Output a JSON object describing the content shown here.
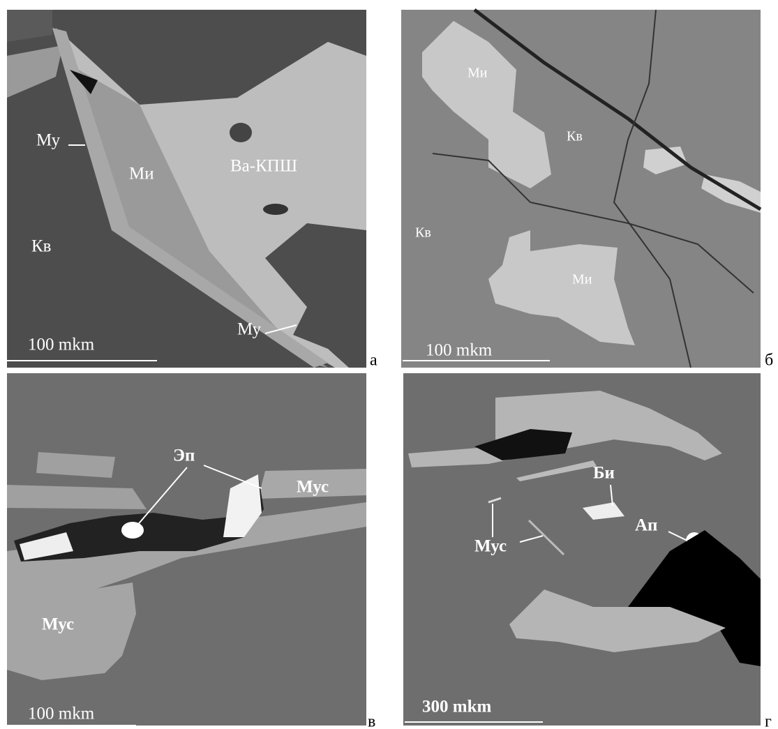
{
  "panels": [
    {
      "letter": "а",
      "scale_bar": "100 mkm",
      "labels": [
        "Му",
        "Ми",
        "Ba-КПШ",
        "Кв",
        "Му"
      ]
    },
    {
      "letter": "б",
      "scale_bar": "100 mkm",
      "labels": [
        "Ми",
        "Кв",
        "Кв",
        "Ми"
      ]
    },
    {
      "letter": "в",
      "scale_bar": "100 mkm",
      "labels": [
        "Эп",
        "Мус",
        "Мус"
      ]
    },
    {
      "letter": "г",
      "scale_bar": "300 mkm",
      "labels": [
        "Би",
        "Ап",
        "Мус"
      ]
    }
  ]
}
